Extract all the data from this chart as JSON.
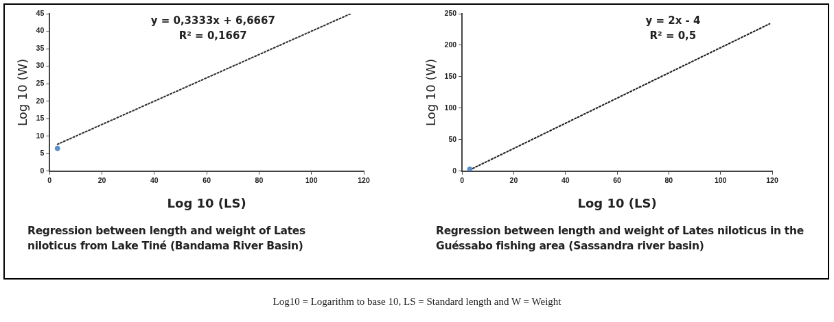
{
  "chart_data": [
    {
      "type": "scatter",
      "title": "Regression between length and weight of Lates niloticus from Lake Tiné (Bandama River Basin)",
      "xlabel": "Log 10 (LS)",
      "ylabel": "Log 10 (W)",
      "xlim": [
        0,
        120
      ],
      "xticks": [
        0,
        20,
        40,
        60,
        80,
        100,
        120
      ],
      "ylim": [
        0,
        45
      ],
      "yticks": [
        0,
        5,
        10,
        15,
        20,
        25,
        30,
        35,
        40,
        45
      ],
      "grid": false,
      "legend": false,
      "marker": "circle",
      "series": [
        {
          "color": "#5b8fc7",
          "x": [
            3
          ],
          "values": [
            6.5
          ]
        },
        {
          "type": "line",
          "line_style": "dotted",
          "marker": "none",
          "color": "#333333",
          "x": [
            3,
            115
          ],
          "values": [
            7.67,
            45
          ]
        }
      ],
      "annotations": [
        "y = 0,3333x + 6,6667",
        "R² = 0,1667"
      ]
    },
    {
      "type": "scatter",
      "title": "Regression between length and weight of Lates niloticus in the Guéssabo fishing area (Sassandra river basin)",
      "xlabel": "Log 10 (LS)",
      "ylabel": "Log 10 (W)",
      "xlim": [
        0,
        120
      ],
      "xticks": [
        0,
        20,
        40,
        60,
        80,
        100,
        120
      ],
      "ylim": [
        0,
        250
      ],
      "yticks": [
        0,
        50,
        100,
        150,
        200,
        250
      ],
      "grid": false,
      "legend": false,
      "marker": "circle",
      "series": [
        {
          "color": "#5b8fc7",
          "x": [
            3
          ],
          "values": [
            3
          ]
        },
        {
          "type": "line",
          "line_style": "dotted",
          "marker": "none",
          "color": "#222222",
          "x": [
            3,
            119
          ],
          "values": [
            2,
            234
          ]
        }
      ],
      "annotations": [
        "y = 2x - 4",
        "R² = 0,5",
        "Log10 = Logarithm to base 10, LS = Standard length and W = Weight"
      ]
    }
  ]
}
